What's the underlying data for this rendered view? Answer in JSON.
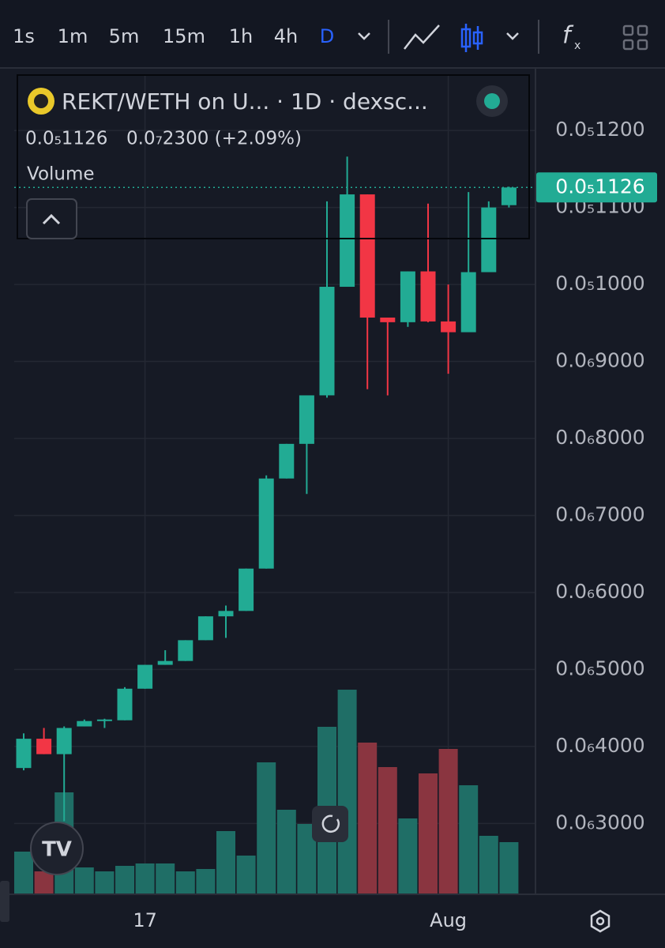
{
  "toolbar": {
    "intervals": [
      "1s",
      "1m",
      "5m",
      "15m",
      "1h",
      "4h",
      "D"
    ],
    "selected_interval": "D"
  },
  "chart_data": {
    "type": "candlestick",
    "title": "REKT/WETH on U... · 1D · dexsc...",
    "legend_price": "0.0₅1126",
    "legend_change": "0.0₇2300 (+2.09%)",
    "volume_label": "Volume",
    "price_badge": "0.0₅1126",
    "up_color": "#22ab94",
    "down_color": "#f23645",
    "volume_up_color": "#1f6e66",
    "volume_down_color": "#8a3540",
    "grid": true,
    "categories": [
      null,
      null,
      null,
      null,
      null,
      null,
      "17",
      null,
      null,
      null,
      null,
      null,
      null,
      null,
      null,
      null,
      null,
      null,
      null,
      null,
      null,
      "Aug",
      null,
      null,
      null
    ],
    "open": [
      3.72e-07,
      4.1e-07,
      3.9e-07,
      4.26e-07,
      4.33e-07,
      4.34e-07,
      4.75e-07,
      5.06e-07,
      5.11e-07,
      5.38e-07,
      5.69e-07,
      5.76e-07,
      6.31e-07,
      7.48e-07,
      7.93e-07,
      8.56e-07,
      9.97e-07,
      1.117e-06,
      9.57e-07,
      9.51e-07,
      1.017e-06,
      9.52e-07,
      9.38e-07,
      1.016e-06,
      1.103e-06
    ],
    "high": [
      4.17e-07,
      4.24e-07,
      4.26e-07,
      4.35e-07,
      4.36e-07,
      4.77e-07,
      5.06e-07,
      5.25e-07,
      5.38e-07,
      5.69e-07,
      5.83e-07,
      6.31e-07,
      7.52e-07,
      7.93e-07,
      8.56e-07,
      1.108e-06,
      1.166e-06,
      1.117e-06,
      9.57e-07,
      1.017e-06,
      1.105e-06,
      1e-06,
      1.12e-06,
      1.108e-06,
      1.127e-06
    ],
    "low": [
      3.69e-07,
      3.9e-07,
      3.03e-07,
      4.26e-07,
      4.24e-07,
      4.34e-07,
      4.75e-07,
      5.06e-07,
      5.11e-07,
      5.38e-07,
      5.41e-07,
      5.76e-07,
      6.31e-07,
      7.48e-07,
      7.28e-07,
      8.53e-07,
      9.97e-07,
      8.64e-07,
      8.56e-07,
      9.45e-07,
      9.51e-07,
      8.84e-07,
      9.38e-07,
      1.016e-06,
      1.1e-06
    ],
    "close": [
      4.1e-07,
      3.9e-07,
      4.24e-07,
      4.33e-07,
      4.35e-07,
      4.75e-07,
      5.06e-07,
      5.11e-07,
      5.38e-07,
      5.69e-07,
      5.76e-07,
      6.31e-07,
      7.48e-07,
      7.93e-07,
      8.56e-07,
      9.97e-07,
      1.117e-06,
      9.57e-07,
      9.51e-07,
      1.017e-06,
      9.52e-07,
      9.38e-07,
      1.016e-06,
      1.1e-06,
      1.126e-06
    ],
    "volume": [
      54,
      29,
      129,
      34,
      29,
      36,
      39,
      39,
      29,
      32,
      80,
      49,
      167,
      107,
      89,
      212,
      259,
      192,
      161,
      96,
      153,
      184,
      138,
      74,
      66
    ],
    "volume_lim": [
      0,
      1037
    ],
    "ylim": [
      2.08e-07,
      1.272e-06
    ],
    "yticks": [
      {
        "value": 1.2e-06,
        "label": "0.0₅1200"
      },
      {
        "value": 1.1e-06,
        "label": "0.0₅1100"
      },
      {
        "value": 1e-06,
        "label": "0.0₅1000"
      },
      {
        "value": 9e-07,
        "label": "0.0₆9000"
      },
      {
        "value": 8e-07,
        "label": "0.0₆8000"
      },
      {
        "value": 7e-07,
        "label": "0.0₆7000"
      },
      {
        "value": 6e-07,
        "label": "0.0₆6000"
      },
      {
        "value": 5e-07,
        "label": "0.0₆5000"
      },
      {
        "value": 4e-07,
        "label": "0.0₆4000"
      },
      {
        "value": 3e-07,
        "label": "0.0₆3000"
      }
    ]
  }
}
